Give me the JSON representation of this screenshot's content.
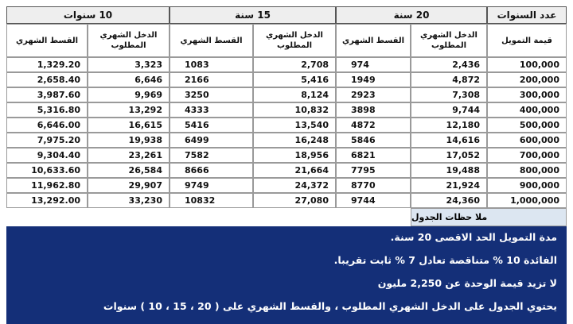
{
  "table": {
    "header": [
      "عدد السنوات",
      "20 سنة",
      "15 سنة",
      "10 سنوات"
    ],
    "subheader": [
      "قيمة التمويل",
      "الدخل الشهري المطلوب",
      "القسط الشهري",
      "الدخل الشهري المطلوب",
      "القسط الشهري",
      "الدخل الشهري المطلوب",
      "القسط الشهري"
    ],
    "rows": [
      [
        "100,000",
        "2,436",
        "974",
        "2,708",
        "1083",
        "3,323",
        "1,329.20"
      ],
      [
        "200,000",
        "4,872",
        "1949",
        "5,416",
        "2166",
        "6,646",
        "2,658.40"
      ],
      [
        "300,000",
        "7,308",
        "2923",
        "8,124",
        "3250",
        "9,969",
        "3,987.60"
      ],
      [
        "400,000",
        "9,744",
        "3898",
        "10,832",
        "4333",
        "13,292",
        "5,316.80"
      ],
      [
        "500,000",
        "12,180",
        "4872",
        "13,540",
        "5416",
        "16,615",
        "6,646.00"
      ],
      [
        "600,000",
        "14,616",
        "5846",
        "16,248",
        "6499",
        "19,938",
        "7,975.20"
      ],
      [
        "700,000",
        "17,052",
        "6821",
        "18,956",
        "7582",
        "23,261",
        "9,304.40"
      ],
      [
        "800,000",
        "19,488",
        "7795",
        "21,664",
        "8666",
        "26,584",
        "10,633.60"
      ],
      [
        "900,000",
        "21,924",
        "8770",
        "24,372",
        "9749",
        "29,907",
        "11,962.80"
      ],
      [
        "1,000,000",
        "24,360",
        "9744",
        "27,080",
        "10832",
        "33,230",
        "13,292.00"
      ]
    ]
  },
  "notes": {
    "title": "ملا حظات الجدول",
    "lines": [
      "مدة التمويل  الحد الاقصى 20 سنة.",
      "الفائدة 10 % متناقصة تعادل 7 % ثابت تقريبا.",
      "لا تزيد قيمة الوحدة عن 2,250 مليون",
      "يحتوي الجدول على الدخل الشهري المطلوب ، والقسط الشهري على ( 20 ، 15 ، 10 ) سنوات"
    ]
  }
}
